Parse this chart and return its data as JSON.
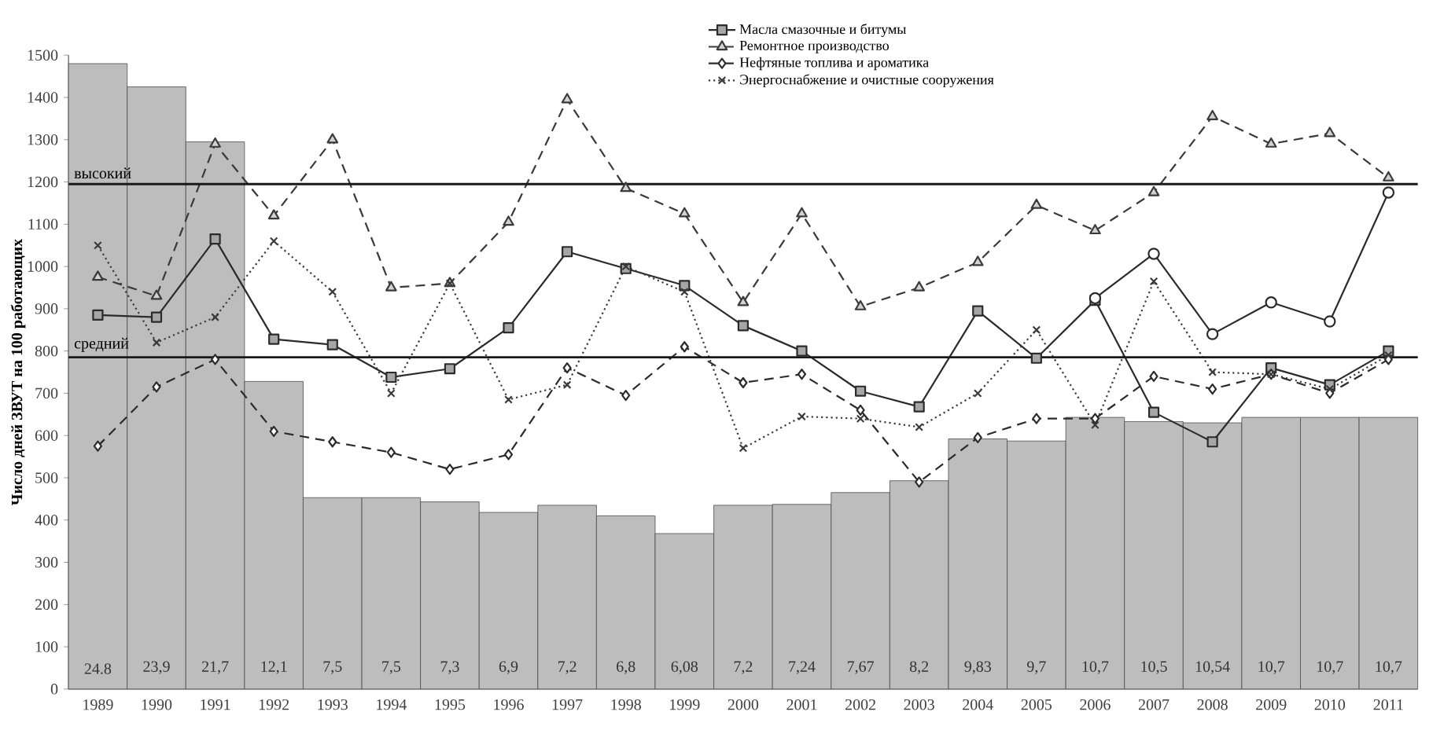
{
  "chart_data": {
    "type": "bar",
    "ylabel": "Число дней ЗВУТ на 100 работающих",
    "categories": [
      "1989",
      "1990",
      "1991",
      "1992",
      "1993",
      "1994",
      "1995",
      "1996",
      "1997",
      "1998",
      "1999",
      "2000",
      "2001",
      "2002",
      "2003",
      "2004",
      "2005",
      "2006",
      "2007",
      "2008",
      "2009",
      "2010",
      "2011"
    ],
    "ylim": [
      0,
      1500
    ],
    "yticks": [
      0,
      100,
      200,
      300,
      400,
      500,
      600,
      700,
      800,
      900,
      1000,
      1100,
      1200,
      1300,
      1400,
      1500
    ],
    "legend": "top right",
    "series": [
      {
        "color": "#bdbdbd",
        "values": [
          1480,
          1425,
          1295,
          728,
          453,
          453,
          443,
          418,
          435,
          410,
          368,
          435,
          437,
          465,
          493,
          592,
          587,
          643,
          633,
          630,
          643,
          643,
          643
        ]
      },
      {
        "type": "line",
        "name": "Масла смазочные и битумы",
        "color": "#2b2b2b",
        "marker": "square",
        "line_style": "solid",
        "values": [
          885,
          880,
          1065,
          828,
          815,
          738,
          758,
          855,
          1035,
          995,
          955,
          860,
          800,
          705,
          668,
          895,
          783,
          920,
          655,
          585,
          760,
          720,
          800
        ]
      },
      {
        "type": "line",
        "name": "Ремонтное производство",
        "color": "#3a3a3a",
        "marker": "triangle",
        "line_style": "dashed",
        "values": [
          975,
          930,
          1290,
          1120,
          1300,
          950,
          960,
          1105,
          1395,
          1185,
          1125,
          915,
          1125,
          905,
          950,
          1010,
          1145,
          1085,
          1175,
          1355,
          1290,
          1315,
          1210
        ]
      },
      {
        "type": "line",
        "name": "Нефтяные топлива и ароматика",
        "color": "#2b2b2b",
        "marker": "diamond",
        "line_style": "dashed",
        "values": [
          575,
          715,
          780,
          610,
          585,
          560,
          520,
          555,
          760,
          695,
          810,
          725,
          745,
          660,
          490,
          595,
          640,
          640,
          740,
          710,
          745,
          700,
          780
        ]
      },
      {
        "type": "line",
        "name": "Энергоснабжение и очистные сооружения",
        "color": "#3a3a3a",
        "marker": "cross",
        "line_style": "dotted",
        "values": [
          1050,
          820,
          880,
          1060,
          940,
          700,
          960,
          685,
          720,
          1000,
          940,
          570,
          645,
          640,
          620,
          700,
          850,
          625,
          965,
          750,
          745,
          710,
          790
        ]
      },
      {
        "type": "line",
        "color": "#2b2b2b",
        "marker": "circle",
        "line_style": "solid",
        "values": [
          null,
          null,
          null,
          null,
          null,
          null,
          null,
          null,
          null,
          null,
          null,
          null,
          null,
          null,
          null,
          null,
          null,
          925,
          1030,
          840,
          915,
          870,
          1175
        ]
      }
    ],
    "annotations": [
      "24.8",
      "23,9",
      "21,7",
      "12,1",
      "7,5",
      "7,5",
      "7,3",
      "6,9",
      "7,2",
      "6,8",
      "6,08",
      "7,2",
      "7,24",
      "7,67",
      "8,2",
      "9,83",
      "9,7",
      "10,7",
      "10,5",
      "10,54",
      "10,7",
      "10,7",
      "10,7"
    ],
    "ref_lines": [
      {
        "axis": "y",
        "value": 1195,
        "label": "высокий",
        "color": "#1a1a1a"
      },
      {
        "axis": "y",
        "value": 785,
        "label": "средний",
        "color": "#1a1a1a"
      }
    ]
  }
}
